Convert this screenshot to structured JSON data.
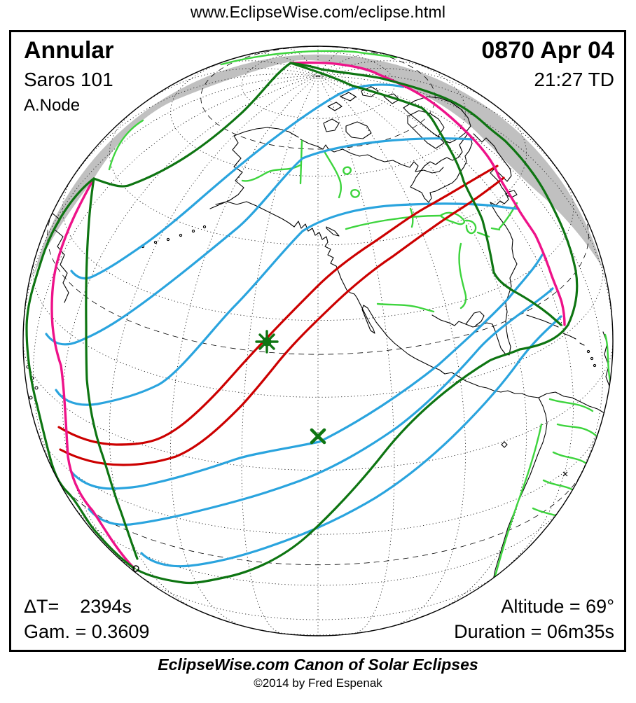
{
  "header": {
    "url": "www.EclipseWise.com/eclipse.html"
  },
  "panel": {
    "top_left": {
      "eclipse_type": "Annular",
      "saros": "Saros 101",
      "node": "A.Node"
    },
    "top_right": {
      "date": "0870 Apr 04",
      "time": "21:27 TD"
    },
    "bottom_left": {
      "delta_t_label": "ΔT=",
      "delta_t_value": "2394s",
      "gamma": "Gam. = 0.3609"
    },
    "bottom_right": {
      "altitude": "Altitude = 69°",
      "duration": "Duration = 06m35s"
    }
  },
  "footer": {
    "title": "EclipseWise.com Canon of Solar Eclipses",
    "copyright": "©2014 by Fred Espenak"
  },
  "map": {
    "colors": {
      "red": "#CC0000",
      "blue": "#2AA4DE",
      "magenta": "#EE1289",
      "green-dark": "#0E7512",
      "green-bright": "#3DD43D",
      "gray": "#C0C0C0"
    },
    "curves": [
      {
        "name": "central-path-limits",
        "color_key": "red"
      },
      {
        "name": "magnitude-contours",
        "color_key": "blue"
      },
      {
        "name": "rise-set-curves",
        "color_key": "magenta"
      },
      {
        "name": "penumbra-limits",
        "color_key": "green-dark"
      },
      {
        "name": "rivers-borders-lakes",
        "color_key": "green-bright"
      },
      {
        "name": "night-region",
        "color_key": "gray"
      }
    ],
    "markers": [
      {
        "name": "greatest-eclipse-marker",
        "symbol": "green star"
      },
      {
        "name": "path-point-marker",
        "symbol": "green x"
      }
    ]
  }
}
